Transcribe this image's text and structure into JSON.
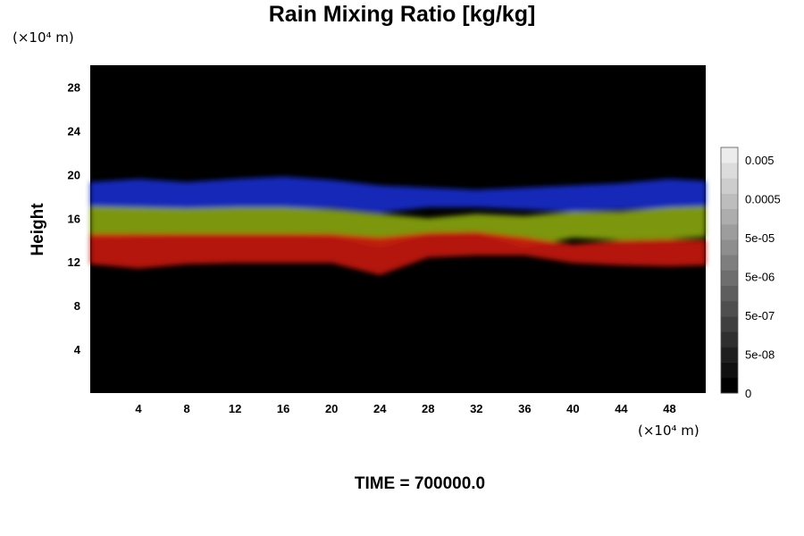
{
  "chart_data": {
    "type": "heatmap",
    "title": "Rain Mixing Ratio [kg/kg]",
    "ylabel": "Height",
    "y_unit": "(×10⁴ m)",
    "x_unit": "(×10⁴ m)",
    "footer": "TIME = 700000.0",
    "xlim": [
      0,
      51
    ],
    "ylim": [
      0,
      30
    ],
    "x_ticks": [
      4,
      8,
      12,
      16,
      20,
      24,
      28,
      32,
      36,
      40,
      44,
      48
    ],
    "y_ticks": [
      4,
      8,
      12,
      16,
      20,
      24,
      28
    ],
    "background_color": "#000000",
    "layers": [
      {
        "color": "#1a2ccc",
        "top": [
          [
            0,
            19.3
          ],
          [
            4,
            19.6
          ],
          [
            8,
            19.3
          ],
          [
            12,
            19.6
          ],
          [
            16,
            19.8
          ],
          [
            20,
            19.5
          ],
          [
            24,
            19.0
          ],
          [
            28,
            18.8
          ],
          [
            32,
            18.6
          ],
          [
            36,
            18.8
          ],
          [
            40,
            19.0
          ],
          [
            44,
            19.2
          ],
          [
            48,
            19.6
          ],
          [
            51,
            19.4
          ]
        ],
        "bottom": [
          [
            0,
            16.8
          ],
          [
            4,
            16.6
          ],
          [
            8,
            16.8
          ],
          [
            12,
            16.9
          ],
          [
            16,
            16.9
          ],
          [
            20,
            16.9
          ],
          [
            24,
            16.5
          ],
          [
            28,
            17.0
          ],
          [
            32,
            17.0
          ],
          [
            36,
            16.8
          ],
          [
            40,
            16.6
          ],
          [
            44,
            16.8
          ],
          [
            48,
            16.9
          ],
          [
            51,
            16.8
          ]
        ]
      },
      {
        "color": "#8aa612",
        "top": [
          [
            0,
            17.1
          ],
          [
            4,
            17.0
          ],
          [
            8,
            16.9
          ],
          [
            12,
            17.0
          ],
          [
            16,
            17.0
          ],
          [
            20,
            16.8
          ],
          [
            24,
            16.4
          ],
          [
            28,
            16.0
          ],
          [
            32,
            16.4
          ],
          [
            36,
            16.2
          ],
          [
            40,
            16.6
          ],
          [
            44,
            16.6
          ],
          [
            48,
            17.0
          ],
          [
            51,
            17.1
          ]
        ],
        "bottom": [
          [
            0,
            14.1
          ],
          [
            4,
            14.3
          ],
          [
            8,
            14.4
          ],
          [
            12,
            14.4
          ],
          [
            16,
            14.4
          ],
          [
            20,
            14.3
          ],
          [
            24,
            13.4
          ],
          [
            28,
            14.5
          ],
          [
            32,
            14.6
          ],
          [
            36,
            13.4
          ],
          [
            40,
            14.2
          ],
          [
            44,
            14.0
          ],
          [
            48,
            14.1
          ],
          [
            51,
            14.3
          ]
        ]
      },
      {
        "color": "#c8140c",
        "top": [
          [
            0,
            14.6
          ],
          [
            4,
            14.6
          ],
          [
            8,
            14.6
          ],
          [
            12,
            14.6
          ],
          [
            16,
            14.6
          ],
          [
            20,
            14.6
          ],
          [
            24,
            14.3
          ],
          [
            28,
            14.7
          ],
          [
            32,
            14.8
          ],
          [
            36,
            14.3
          ],
          [
            40,
            13.6
          ],
          [
            44,
            14.0
          ],
          [
            48,
            14.1
          ],
          [
            51,
            14.0
          ]
        ],
        "bottom": [
          [
            0,
            11.8
          ],
          [
            4,
            11.4
          ],
          [
            8,
            11.8
          ],
          [
            12,
            11.9
          ],
          [
            16,
            11.9
          ],
          [
            20,
            11.9
          ],
          [
            24,
            10.8
          ],
          [
            28,
            12.4
          ],
          [
            32,
            12.6
          ],
          [
            36,
            12.6
          ],
          [
            40,
            11.9
          ],
          [
            44,
            11.7
          ],
          [
            48,
            11.6
          ],
          [
            51,
            11.7
          ]
        ]
      }
    ],
    "colorbar": {
      "labels": [
        "0.005",
        "0.0005",
        "5e-05",
        "5e-06",
        "5e-07",
        "5e-08",
        "0"
      ],
      "steps": 16,
      "color_min": "#000000",
      "color_max": "#ececec"
    }
  }
}
